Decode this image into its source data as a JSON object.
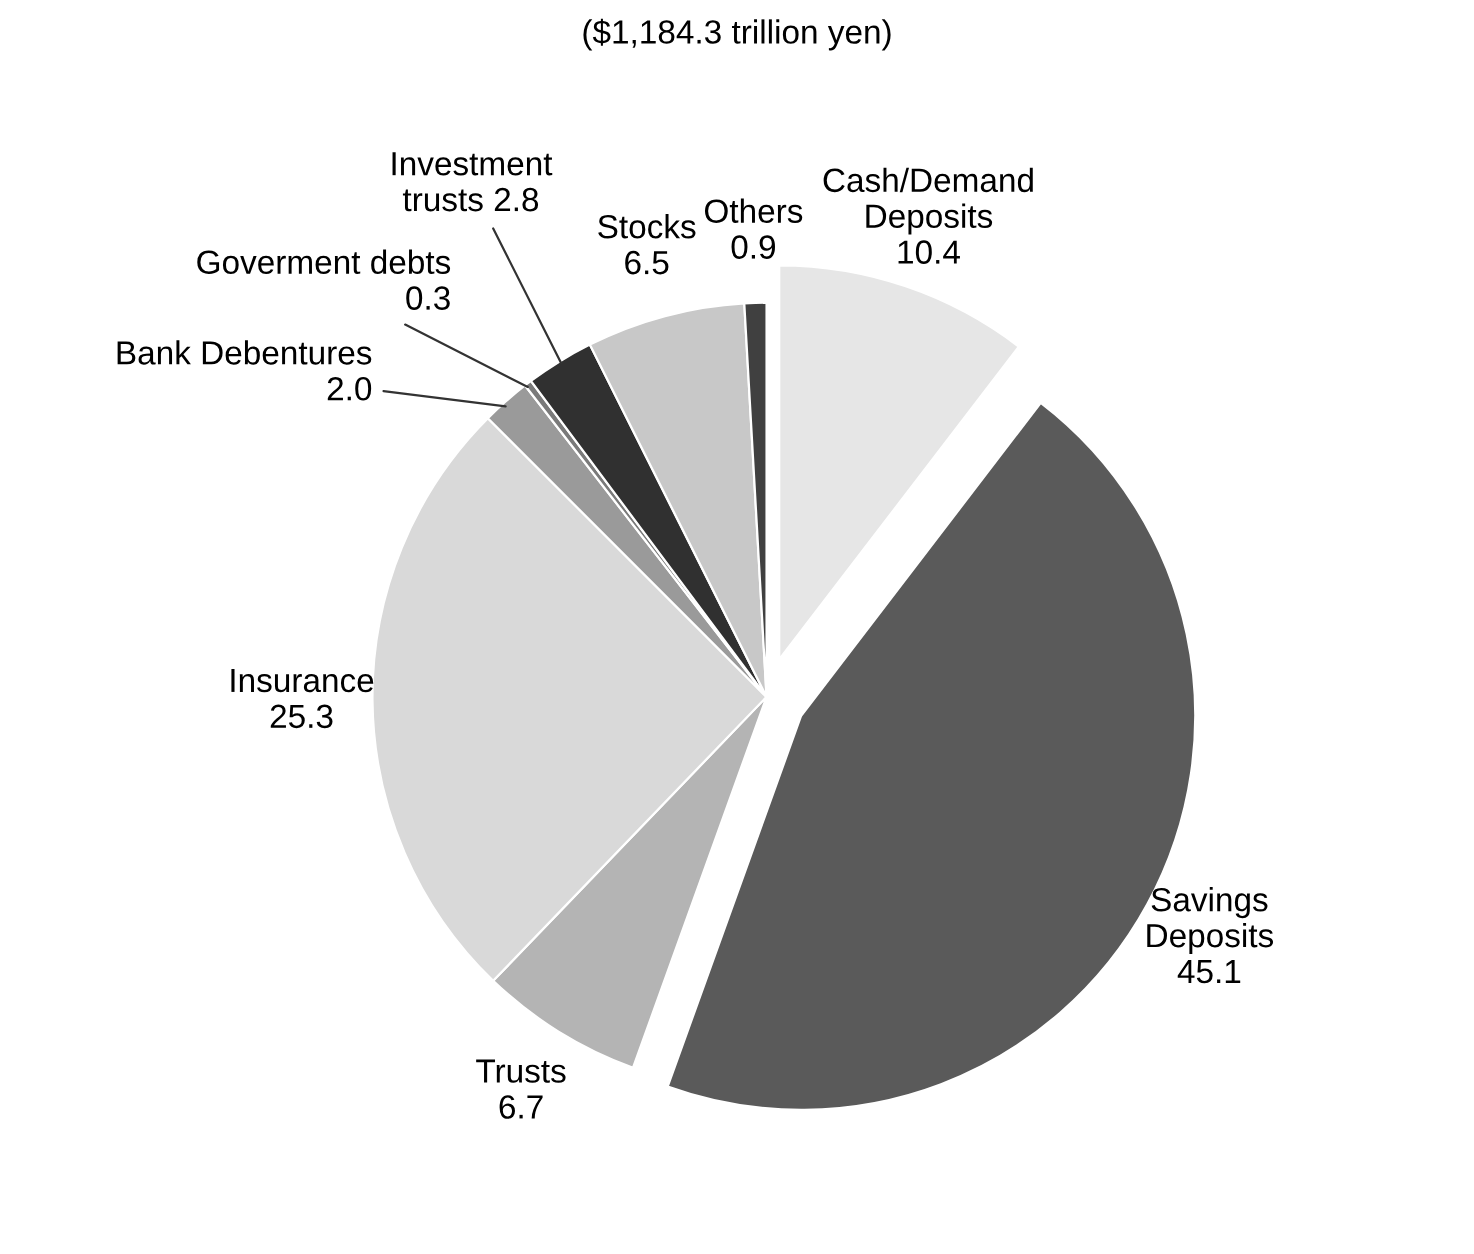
{
  "chart_data": {
    "type": "pie",
    "title": "($1,184.3 trillion yen)",
    "categories": [
      "Cash/Demand\nDeposits",
      "Savings\nDeposits",
      "Trusts",
      "Insurance",
      "Bank Debentures",
      "Goverment debts",
      "Investment\ntrusts",
      "Stocks",
      "Others"
    ],
    "values": [
      10.4,
      45.1,
      6.7,
      25.3,
      2.0,
      0.3,
      2.8,
      6.5,
      0.9
    ],
    "colors": [
      "#e6e6e6",
      "#5a5a5a",
      "#b4b4b4",
      "#d9d9d9",
      "#9a9a9a",
      "#7a7a7a",
      "#303030",
      "#c8c8c8",
      "#404040"
    ],
    "value_labels": [
      "10.4",
      "45.1",
      "6.7",
      "25.3",
      "2.0",
      "0.3",
      "2.8",
      "6.5",
      "0.9"
    ]
  }
}
